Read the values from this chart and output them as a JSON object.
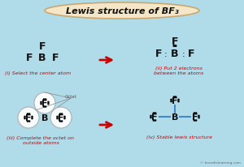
{
  "title": "Lewis structure of BF₃",
  "bg_color": "#b0dcea",
  "title_bg": "#f5e6c8",
  "title_border": "#c8a870",
  "arrow_color": "#cc0000",
  "label_color": "#cc0000",
  "bond_color_blue": "#4488cc",
  "text_color": "#111111",
  "watermark": "© knordislearning.com",
  "panel1_label": "(i) Select the center atom",
  "panel2_label": "(ii) Put 2 electrons\nbetween the atoms",
  "panel3_label": "(iii) Complete the octet on\noutside atoms",
  "panel4_label": "(iv) Stable lewis structure"
}
